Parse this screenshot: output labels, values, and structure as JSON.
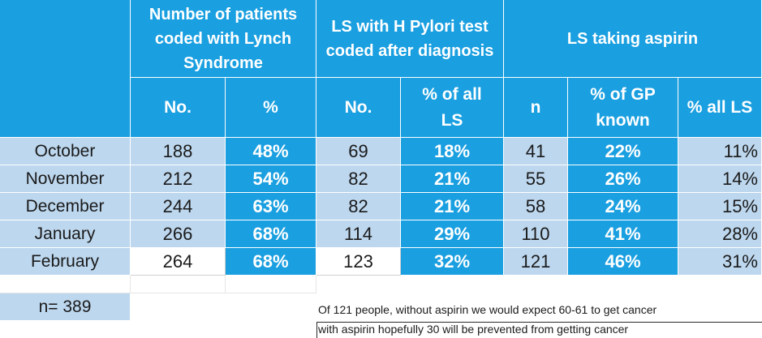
{
  "headers": {
    "group1": "Number of patients coded with Lynch Syndrome",
    "group2": "LS with H Pylori test coded after diagnosis",
    "group3": "LS taking aspirin",
    "sub": [
      "No.",
      "%",
      "No.",
      "% of all LS",
      "n",
      "% of GP known",
      "% all LS"
    ]
  },
  "rows": [
    {
      "month": "October",
      "c1": "188",
      "c2": "48%",
      "c3": "69",
      "c4": "18%",
      "c5": "41",
      "c6": "22%",
      "c7": "11%"
    },
    {
      "month": "November",
      "c1": "212",
      "c2": "54%",
      "c3": "82",
      "c4": "21%",
      "c5": "55",
      "c6": "26%",
      "c7": "14%"
    },
    {
      "month": "December",
      "c1": "244",
      "c2": "63%",
      "c3": "82",
      "c4": "21%",
      "c5": "58",
      "c6": "24%",
      "c7": "15%"
    },
    {
      "month": "January",
      "c1": "266",
      "c2": "68%",
      "c3": "114",
      "c4": "29%",
      "c5": "110",
      "c6": "41%",
      "c7": "28%"
    },
    {
      "month": "February",
      "c1": "264",
      "c2": "68%",
      "c3": "123",
      "c4": "32%",
      "c5": "121",
      "c6": "46%",
      "c7": "31%"
    }
  ],
  "n_label": "n= 389",
  "notes": [
    "Of 121 people, without aspirin we would expect 60-61 to get cancer",
    "with aspirin hopefully  30 will  be prevented from getting cancer"
  ],
  "colors": {
    "header_blue": "#1a9fe0",
    "light_blue": "#bdd7ee"
  }
}
